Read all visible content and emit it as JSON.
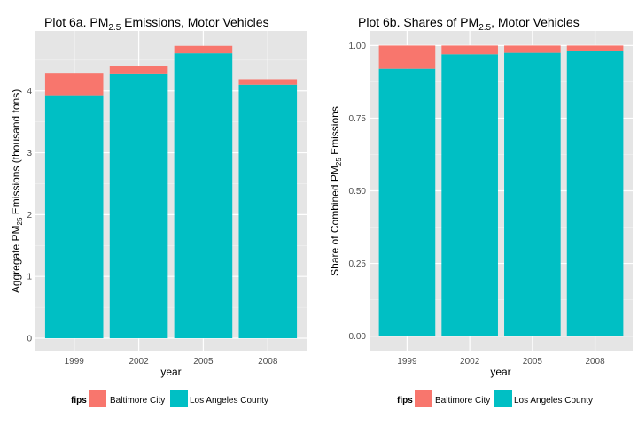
{
  "chart_data": [
    {
      "type": "bar",
      "stacked": true,
      "title": {
        "prefix": "Plot 6a. PM",
        "sub": "2.5",
        "suffix": " Emissions, Motor Vehicles"
      },
      "xlabel": "year",
      "ylabel": {
        "prefix": "Aggregate PM",
        "sub": "25",
        "suffix": " Emissions (thousand tons)"
      },
      "categories": [
        "1999",
        "2002",
        "2005",
        "2008"
      ],
      "ylim": [
        -0.2,
        4.97
      ],
      "yticks": [
        "0",
        "1",
        "2",
        "3",
        "4"
      ],
      "legend": {
        "title": "fips",
        "position": "bottom"
      },
      "series": [
        {
          "name": "Los Angeles County",
          "color": "#00bfc4",
          "values": [
            3.93,
            4.27,
            4.61,
            4.1
          ]
        },
        {
          "name": "Baltimore City",
          "color": "#f8766d",
          "values": [
            0.35,
            0.14,
            0.12,
            0.09
          ]
        }
      ]
    },
    {
      "type": "bar",
      "stacked": true,
      "title": {
        "prefix": "Plot 6b. Shares of PM",
        "sub": "2.5",
        "suffix": ", Motor Vehicles"
      },
      "xlabel": "year",
      "ylabel": {
        "prefix": "Share of Combined PM",
        "sub": "25",
        "suffix": " Emissions"
      },
      "categories": [
        "1999",
        "2002",
        "2005",
        "2008"
      ],
      "ylim": [
        -0.05,
        1.05
      ],
      "yticks": [
        "0.00",
        "0.25",
        "0.50",
        "0.75",
        "1.00"
      ],
      "legend": {
        "title": "fips",
        "position": "bottom"
      },
      "series": [
        {
          "name": "Los Angeles County",
          "color": "#00bfc4",
          "values": [
            0.92,
            0.97,
            0.975,
            0.98
          ]
        },
        {
          "name": "Baltimore City",
          "color": "#f8766d",
          "values": [
            0.08,
            0.03,
            0.025,
            0.02
          ]
        }
      ]
    }
  ]
}
